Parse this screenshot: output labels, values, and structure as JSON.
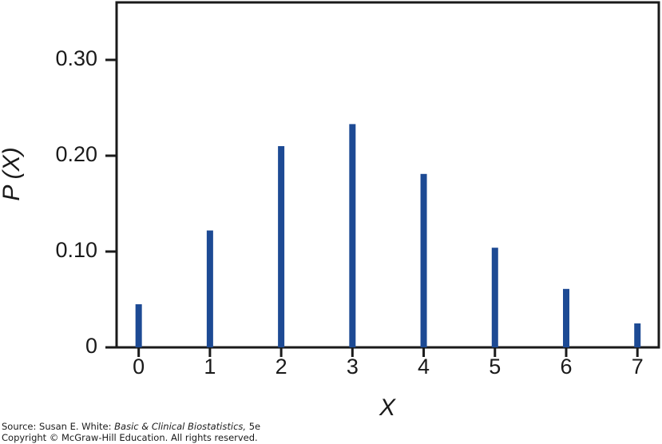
{
  "chart_data": {
    "type": "stem",
    "x": [
      0,
      1,
      2,
      3,
      4,
      5,
      6,
      7
    ],
    "values": [
      0.045,
      0.122,
      0.21,
      0.233,
      0.181,
      0.104,
      0.061,
      0.025
    ],
    "color": "#1d4a94",
    "xlim": [
      -0.31,
      7.3
    ],
    "xticks": [
      0,
      1,
      2,
      3,
      4,
      5,
      6,
      7
    ],
    "ylim": [
      0,
      0.36
    ],
    "yticks": [
      0,
      {
        "value": 0.1,
        "label": "0.10"
      },
      {
        "value": 0.2,
        "label": "0.20"
      },
      {
        "value": 0.3,
        "label": "0.30"
      }
    ],
    "xlabel": "X",
    "ylabel": "P (X)",
    "source": {
      "prefix": "Source: Susan E. White: ",
      "book": "Basic & Clinical Biostatistics,",
      "edition": " 5e"
    },
    "copyright": "Copyright © McGraw-Hill Education. All rights reserved."
  }
}
